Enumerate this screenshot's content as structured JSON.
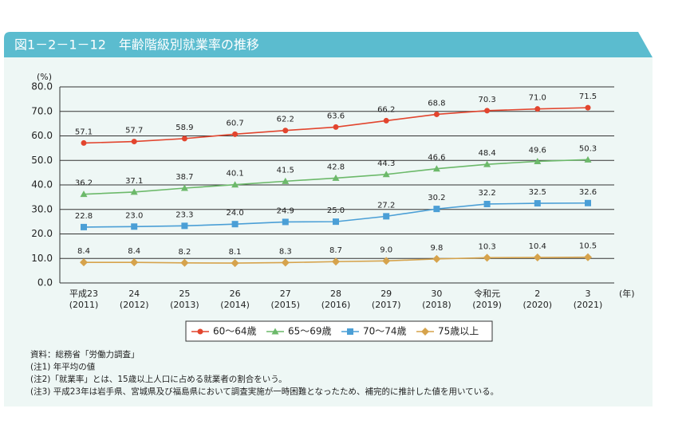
{
  "chart_data": {
    "type": "line",
    "title": "図1－2－1－12　年齢階級別就業率の推移",
    "y_unit": "(%)",
    "x_unit": "(年)",
    "categories": [
      [
        "平成23",
        "(2011)"
      ],
      [
        "24",
        "(2012)"
      ],
      [
        "25",
        "(2013)"
      ],
      [
        "26",
        "(2014)"
      ],
      [
        "27",
        "(2015)"
      ],
      [
        "28",
        "(2016)"
      ],
      [
        "29",
        "(2017)"
      ],
      [
        "30",
        "(2018)"
      ],
      [
        "令和元",
        "(2019)"
      ],
      [
        "2",
        "(2020)"
      ],
      [
        "3",
        "(2021)"
      ]
    ],
    "ylim": [
      0,
      80
    ],
    "yticks": [
      {
        "value": 0,
        "label": "0.0"
      },
      {
        "value": 10,
        "label": "10.0"
      },
      {
        "value": 20,
        "label": "20.0"
      },
      {
        "value": 30,
        "label": "30.0"
      },
      {
        "value": 40,
        "label": "40.0"
      },
      {
        "value": 50,
        "label": "50.0"
      },
      {
        "value": 60,
        "label": "60.0"
      },
      {
        "value": 70,
        "label": "70.0"
      },
      {
        "value": 80,
        "label": "80.0"
      }
    ],
    "grid": true,
    "series": [
      {
        "name": "60～64歳",
        "color": "#e2452e",
        "marker": "circle",
        "values": [
          57.1,
          57.7,
          58.9,
          60.7,
          62.2,
          63.6,
          66.2,
          68.8,
          70.3,
          71.0,
          71.5
        ],
        "value_labels": [
          "57.1",
          "57.7",
          "58.9",
          "60.7",
          "62.2",
          "63.6",
          "66.2",
          "68.8",
          "70.3",
          "71.0",
          "71.5"
        ]
      },
      {
        "name": "65～69歳",
        "color": "#6cb96a",
        "marker": "triangle",
        "values": [
          36.2,
          37.1,
          38.7,
          40.1,
          41.5,
          42.8,
          44.3,
          46.6,
          48.4,
          49.6,
          50.3
        ],
        "value_labels": [
          "36.2",
          "37.1",
          "38.7",
          "40.1",
          "41.5",
          "42.8",
          "44.3",
          "46.6",
          "48.4",
          "49.6",
          "50.3"
        ]
      },
      {
        "name": "70～74歳",
        "color": "#4b9fd6",
        "marker": "square",
        "values": [
          22.8,
          23.0,
          23.3,
          24.0,
          24.9,
          25.0,
          27.2,
          30.2,
          32.2,
          32.5,
          32.6
        ],
        "value_labels": [
          "22.8",
          "23.0",
          "23.3",
          "24.0",
          "24.9",
          "25.0",
          "27.2",
          "30.2",
          "32.2",
          "32.5",
          "32.6"
        ]
      },
      {
        "name": "75歳以上",
        "color": "#d6a34c",
        "marker": "diamond",
        "values": [
          8.4,
          8.4,
          8.2,
          8.1,
          8.3,
          8.7,
          9.0,
          9.8,
          10.3,
          10.4,
          10.5
        ],
        "value_labels": [
          "8.4",
          "8.4",
          "8.2",
          "8.1",
          "8.3",
          "8.7",
          "9.0",
          "9.8",
          "10.3",
          "10.4",
          "10.5"
        ]
      }
    ],
    "notes": [
      "資料：総務省「労働力調査」",
      "(注1)  年平均の値",
      "(注2)「就業率」とは、15歳以上人口に占める就業者の割合をいう。",
      "(注3)  平成23年は岩手県、宮城県及び福島県において調査実施が一時困難となったため、補完的に推計した値を用いている。"
    ]
  }
}
